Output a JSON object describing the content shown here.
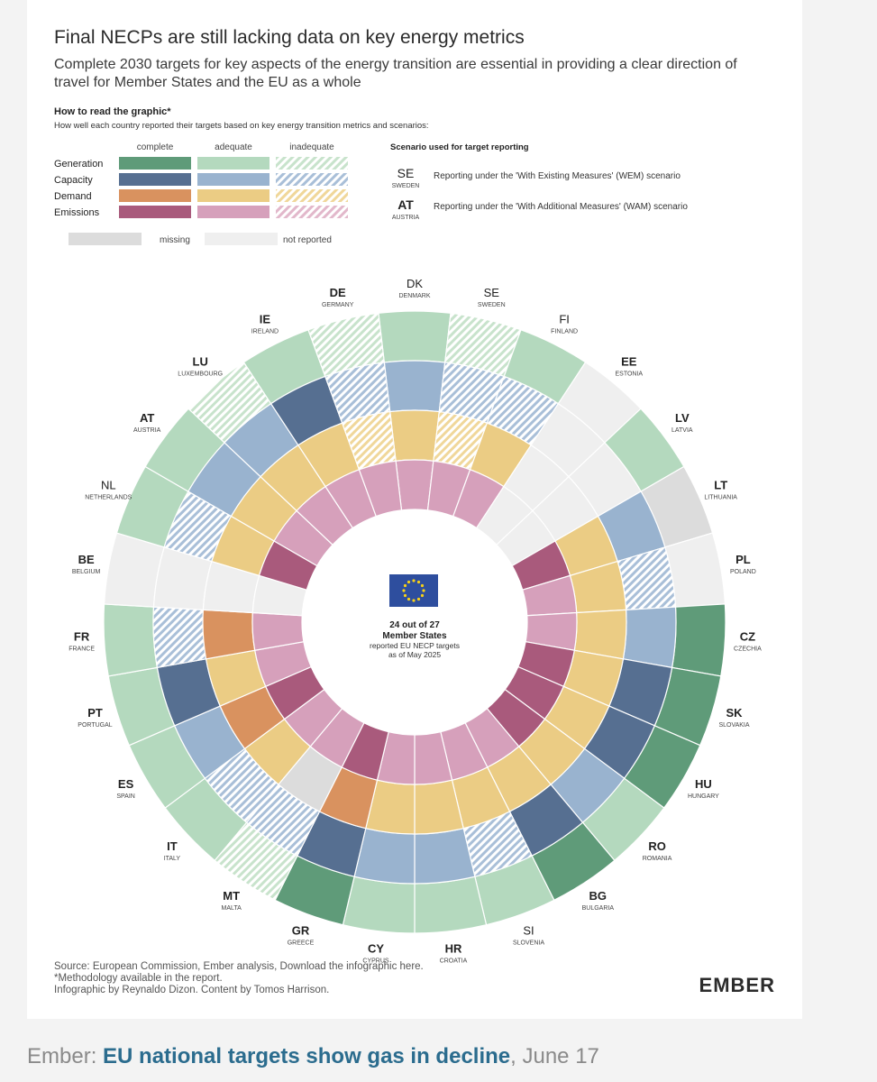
{
  "header": {
    "title": "Final NECPs are still lacking data on key energy metrics",
    "subtitle_line1": "Complete 2030 targets for key aspects of the energy transition are essential in providing a clear direction of",
    "subtitle_line2": "travel for Member States and the EU as a whole"
  },
  "legend": {
    "heading": "How to read the graphic*",
    "subheading": "How well each country reported their targets based on key energy transition metrics and scenarios:",
    "col_complete": "complete",
    "col_adequate": "adequate",
    "col_inadequate": "inadequate",
    "rows": [
      {
        "label": "Generation",
        "complete": "#5f9b79",
        "adequate": "#b4d9be"
      },
      {
        "label": "Capacity",
        "complete": "#566f91",
        "adequate": "#99b3cf"
      },
      {
        "label": "Demand",
        "complete": "#d9925f",
        "adequate": "#ebcc84"
      },
      {
        "label": "Emissions",
        "complete": "#a95a7c",
        "adequate": "#d6a0bb"
      }
    ],
    "missing_label": "missing",
    "missing_color": "#dcdcdc",
    "not_reported_label": "not reported",
    "not_reported_color": "#efefef",
    "scenario_heading": "Scenario used for target reporting",
    "scenario_wem_code": "SE",
    "scenario_wem_country": "SWEDEN",
    "scenario_wem_text": "Reporting under the 'With Existing Measures' (WEM) scenario",
    "scenario_wam_code": "AT",
    "scenario_wam_country": "AUSTRIA",
    "scenario_wam_text": "Reporting under the 'With Additional Measures' (WAM) scenario"
  },
  "center": {
    "line1": "24 out of 27",
    "line2": "Member States",
    "line3": "reported EU NECP targets",
    "line4": "as of May 2025"
  },
  "chart_data": {
    "type": "radial-ring-matrix",
    "rings_outer_to_inner": [
      "Generation",
      "Capacity",
      "Demand",
      "Emissions"
    ],
    "status_scale": [
      "complete",
      "adequate",
      "inadequate",
      "missing",
      "not reported"
    ],
    "countries": [
      {
        "code": "DK",
        "name": "DENMARK",
        "scenario": "WEM",
        "generation": "adequate",
        "capacity": "adequate",
        "demand": "adequate",
        "emissions": "adequate"
      },
      {
        "code": "SE",
        "name": "SWEDEN",
        "scenario": "WEM",
        "generation": "inadequate",
        "capacity": "inadequate",
        "demand": "inadequate",
        "emissions": "adequate"
      },
      {
        "code": "FI",
        "name": "FINLAND",
        "scenario": "WEM",
        "generation": "adequate",
        "capacity": "inadequate",
        "demand": "adequate",
        "emissions": "adequate"
      },
      {
        "code": "EE",
        "name": "ESTONIA",
        "scenario": "WAM",
        "generation": "not reported",
        "capacity": "not reported",
        "demand": "not reported",
        "emissions": "not reported"
      },
      {
        "code": "LV",
        "name": "LATVIA",
        "scenario": "WAM",
        "generation": "adequate",
        "capacity": "not reported",
        "demand": "not reported",
        "emissions": "not reported"
      },
      {
        "code": "LT",
        "name": "LITHUANIA",
        "scenario": "WAM",
        "generation": "missing",
        "capacity": "adequate",
        "demand": "adequate",
        "emissions": "complete"
      },
      {
        "code": "PL",
        "name": "POLAND",
        "scenario": "WAM",
        "generation": "not reported",
        "capacity": "inadequate",
        "demand": "adequate",
        "emissions": "adequate"
      },
      {
        "code": "CZ",
        "name": "CZECHIA",
        "scenario": "WAM",
        "generation": "complete",
        "capacity": "adequate",
        "demand": "adequate",
        "emissions": "adequate"
      },
      {
        "code": "SK",
        "name": "SLOVAKIA",
        "scenario": "WAM",
        "generation": "complete",
        "capacity": "complete",
        "demand": "adequate",
        "emissions": "complete"
      },
      {
        "code": "HU",
        "name": "HUNGARY",
        "scenario": "WAM",
        "generation": "complete",
        "capacity": "complete",
        "demand": "adequate",
        "emissions": "complete"
      },
      {
        "code": "RO",
        "name": "ROMANIA",
        "scenario": "WAM",
        "generation": "adequate",
        "capacity": "adequate",
        "demand": "adequate",
        "emissions": "complete"
      },
      {
        "code": "BG",
        "name": "BULGARIA",
        "scenario": "WAM",
        "generation": "complete",
        "capacity": "complete",
        "demand": "adequate",
        "emissions": "adequate"
      },
      {
        "code": "SI",
        "name": "SLOVENIA",
        "scenario": "WEM",
        "generation": "adequate",
        "capacity": "inadequate",
        "demand": "adequate",
        "emissions": "adequate"
      },
      {
        "code": "HR",
        "name": "CROATIA",
        "scenario": "WAM",
        "generation": "adequate",
        "capacity": "adequate",
        "demand": "adequate",
        "emissions": "adequate"
      },
      {
        "code": "CY",
        "name": "CYPRUS",
        "scenario": "WAM",
        "generation": "adequate",
        "capacity": "adequate",
        "demand": "adequate",
        "emissions": "adequate"
      },
      {
        "code": "GR",
        "name": "GREECE",
        "scenario": "WAM",
        "generation": "complete",
        "capacity": "complete",
        "demand": "complete",
        "emissions": "complete"
      },
      {
        "code": "MT",
        "name": "MALTA",
        "scenario": "WAM",
        "generation": "inadequate",
        "capacity": "inadequate",
        "demand": "missing",
        "emissions": "adequate"
      },
      {
        "code": "IT",
        "name": "ITALY",
        "scenario": "WAM",
        "generation": "adequate",
        "capacity": "inadequate",
        "demand": "adequate",
        "emissions": "adequate"
      },
      {
        "code": "ES",
        "name": "SPAIN",
        "scenario": "WAM",
        "generation": "adequate",
        "capacity": "adequate",
        "demand": "complete",
        "emissions": "complete"
      },
      {
        "code": "PT",
        "name": "PORTUGAL",
        "scenario": "WAM",
        "generation": "adequate",
        "capacity": "complete",
        "demand": "adequate",
        "emissions": "adequate"
      },
      {
        "code": "FR",
        "name": "FRANCE",
        "scenario": "WAM",
        "generation": "adequate",
        "capacity": "inadequate",
        "demand": "complete",
        "emissions": "adequate"
      },
      {
        "code": "BE",
        "name": "BELGIUM",
        "scenario": "WAM",
        "generation": "not reported",
        "capacity": "not reported",
        "demand": "not reported",
        "emissions": "not reported"
      },
      {
        "code": "NL",
        "name": "NETHERLANDS",
        "scenario": "WEM",
        "generation": "adequate",
        "capacity": "inadequate",
        "demand": "adequate",
        "emissions": "complete"
      },
      {
        "code": "AT",
        "name": "AUSTRIA",
        "scenario": "WAM",
        "generation": "adequate",
        "capacity": "adequate",
        "demand": "adequate",
        "emissions": "adequate"
      },
      {
        "code": "LU",
        "name": "LUXEMBOURG",
        "scenario": "WAM",
        "generation": "inadequate",
        "capacity": "adequate",
        "demand": "adequate",
        "emissions": "adequate"
      },
      {
        "code": "IE",
        "name": "IRELAND",
        "scenario": "WAM",
        "generation": "adequate",
        "capacity": "complete",
        "demand": "adequate",
        "emissions": "adequate"
      },
      {
        "code": "DE",
        "name": "GERMANY",
        "scenario": "WAM",
        "generation": "inadequate",
        "capacity": "inadequate",
        "demand": "inadequate",
        "emissions": "adequate"
      }
    ]
  },
  "footer": {
    "source": "Source: European Commission, Ember analysis, Download the infographic here.",
    "methodology": "*Methodology available in the report.",
    "credits": "Infographic by Reynaldo Dizon. Content by Tomos Harrison.",
    "logo": "EMBER"
  },
  "caption": {
    "source": "Ember: ",
    "link": "EU national targets show gas in decline",
    "date": ", June 17"
  }
}
